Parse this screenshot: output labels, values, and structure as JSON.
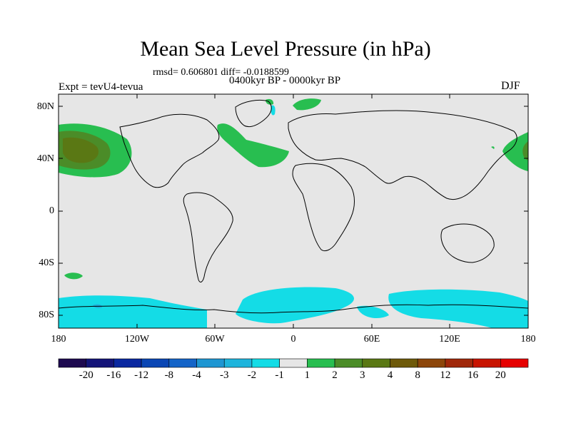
{
  "title": "Mean Sea Level Pressure (in hPa)",
  "stats_line": "rmsd= 0.606801 diff= -0.0188599",
  "period": "0400kyr BP - 0000kyr BP",
  "experiment": "Expt = tevU4-tevua",
  "season": "DJF",
  "map": {
    "lat_labels": [
      "80N",
      "40N",
      "0",
      "40S",
      "80S"
    ],
    "lon_labels": [
      "180",
      "120W",
      "60W",
      "0",
      "60E",
      "120E",
      "180"
    ],
    "background_color": "#e6e6e6",
    "coastline_color": "#000000"
  },
  "colorbar": {
    "labels": [
      "-20",
      "-16",
      "-12",
      "-8",
      "-4",
      "-3",
      "-2",
      "-1",
      "1",
      "2",
      "3",
      "4",
      "8",
      "12",
      "16",
      "20"
    ],
    "colors": [
      "#1e0a50",
      "#141478",
      "#0a28a0",
      "#0a46b4",
      "#1464c8",
      "#1e96d2",
      "#1eb4dc",
      "#14dce6",
      "#e6e6e6",
      "#28be50",
      "#4b8c28",
      "#5a7814",
      "#6e5a0a",
      "#8c460a",
      "#a0280a",
      "#c81400",
      "#e60000"
    ]
  }
}
